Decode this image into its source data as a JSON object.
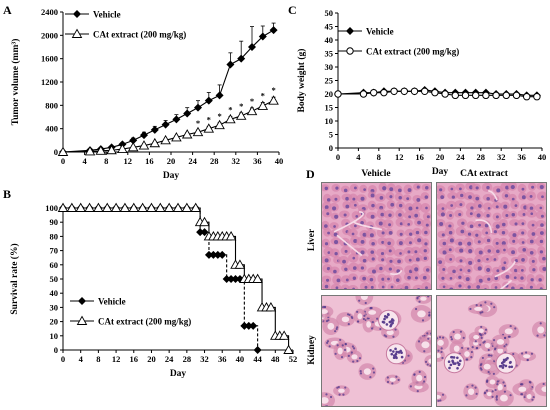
{
  "panels": {
    "A": "A",
    "B": "B",
    "C": "C",
    "D": "D"
  },
  "chart_data": [
    {
      "id": "A",
      "type": "line",
      "xlabel": "Day",
      "ylabel": "Tumor volume (mm³)",
      "xlim": [
        0,
        40
      ],
      "ylim": [
        0,
        2400
      ],
      "xticks": [
        0,
        4,
        8,
        12,
        16,
        20,
        24,
        28,
        32,
        36,
        40
      ],
      "yticks": [
        0,
        400,
        800,
        1200,
        1600,
        2000,
        2400
      ],
      "legend_position": "top-left",
      "series": [
        {
          "name": "Vehicle",
          "marker": "filled-diamond",
          "x": [
            0,
            5,
            7,
            9,
            11,
            13,
            15,
            17,
            19,
            21,
            23,
            25,
            27,
            29,
            31,
            33,
            35,
            37,
            39
          ],
          "y": [
            0,
            30,
            50,
            80,
            130,
            200,
            290,
            380,
            470,
            560,
            660,
            760,
            880,
            970,
            1500,
            1600,
            1800,
            1980,
            2090
          ],
          "err": [
            0,
            10,
            15,
            20,
            30,
            40,
            50,
            60,
            70,
            80,
            100,
            120,
            140,
            180,
            200,
            300,
            350,
            180,
            120
          ]
        },
        {
          "name": "CAt extract (200 mg/kg)",
          "marker": "open-triangle",
          "x": [
            0,
            5,
            7,
            9,
            11,
            13,
            15,
            17,
            19,
            21,
            23,
            25,
            27,
            29,
            31,
            33,
            35,
            37,
            39
          ],
          "y": [
            0,
            10,
            20,
            30,
            50,
            80,
            110,
            150,
            200,
            250,
            300,
            340,
            400,
            460,
            560,
            620,
            700,
            790,
            880
          ],
          "err": [
            0,
            5,
            5,
            10,
            10,
            15,
            20,
            20,
            25,
            30,
            30,
            35,
            40,
            40,
            45,
            50,
            55,
            60,
            60
          ]
        }
      ],
      "significance": {
        "symbol": "*",
        "x": [
          25,
          27,
          29,
          31,
          33,
          35,
          37,
          39
        ]
      }
    },
    {
      "id": "B",
      "type": "line",
      "step": true,
      "xlabel": "Day",
      "ylabel": "Survival rate (%)",
      "xlim": [
        0,
        52
      ],
      "ylim": [
        0,
        100
      ],
      "xticks": [
        0,
        4,
        8,
        12,
        16,
        20,
        24,
        28,
        32,
        36,
        40,
        44,
        48,
        52
      ],
      "yticks": [
        0,
        10,
        20,
        30,
        40,
        50,
        60,
        70,
        80,
        90,
        100
      ],
      "legend_position": "bottom-left",
      "series": [
        {
          "name": "Vehicle",
          "marker": "filled-diamond",
          "x": [
            0,
            2,
            4,
            6,
            8,
            10,
            12,
            14,
            16,
            18,
            20,
            22,
            24,
            26,
            28,
            30,
            31,
            32,
            33,
            34,
            35,
            36,
            37,
            38,
            39,
            40,
            41,
            42,
            43,
            44
          ],
          "y": [
            100,
            100,
            100,
            100,
            100,
            100,
            100,
            100,
            100,
            100,
            100,
            100,
            100,
            100,
            100,
            100,
            83,
            83,
            67,
            67,
            67,
            67,
            50,
            50,
            50,
            50,
            17,
            17,
            17,
            0
          ]
        },
        {
          "name": "CAt extract (200 mg/kg)",
          "marker": "open-triangle",
          "x": [
            0,
            2,
            4,
            6,
            8,
            10,
            12,
            14,
            16,
            18,
            20,
            22,
            24,
            26,
            28,
            30,
            31,
            32,
            33,
            34,
            35,
            36,
            37,
            38,
            39,
            40,
            41,
            42,
            43,
            44,
            45,
            46,
            47,
            48,
            49,
            50,
            51
          ],
          "y": [
            100,
            100,
            100,
            100,
            100,
            100,
            100,
            100,
            100,
            100,
            100,
            100,
            100,
            100,
            100,
            100,
            90,
            90,
            80,
            80,
            80,
            80,
            80,
            80,
            60,
            60,
            50,
            50,
            50,
            50,
            30,
            30,
            30,
            10,
            10,
            10,
            0
          ]
        }
      ]
    },
    {
      "id": "C",
      "type": "line",
      "xlabel": "Day",
      "ylabel": "Body weight (g)",
      "xlim": [
        0,
        40
      ],
      "ylim": [
        0,
        50
      ],
      "xticks": [
        0,
        4,
        8,
        12,
        16,
        20,
        24,
        28,
        32,
        36,
        40
      ],
      "yticks": [
        0,
        5,
        10,
        15,
        20,
        25,
        30,
        35,
        40,
        45,
        50
      ],
      "legend_position": "top-left",
      "series": [
        {
          "name": "Vehicle",
          "marker": "filled-diamond",
          "x": [
            0,
            5,
            7,
            9,
            11,
            13,
            15,
            17,
            19,
            21,
            23,
            25,
            27,
            29,
            31,
            33,
            35,
            37,
            39
          ],
          "y": [
            20,
            20.5,
            20.5,
            21,
            21,
            21,
            21,
            21.5,
            21,
            20.5,
            20.5,
            20.5,
            20.5,
            20.5,
            20,
            20,
            20,
            19.5,
            19.5
          ]
        },
        {
          "name": "CAt extract (200 mg/kg)",
          "marker": "open-circle",
          "x": [
            0,
            5,
            7,
            9,
            11,
            13,
            15,
            17,
            19,
            21,
            23,
            25,
            27,
            29,
            31,
            33,
            35,
            37,
            39
          ],
          "y": [
            20,
            20,
            20.5,
            20.5,
            21,
            21,
            21,
            21,
            20.5,
            20,
            19.5,
            19.5,
            19.5,
            19.5,
            19.5,
            19.5,
            19.5,
            19,
            19
          ]
        }
      ]
    }
  ],
  "histology": {
    "columns": [
      "Vehicle",
      "CAt extract"
    ],
    "rows": [
      "Liver",
      "Kidney"
    ]
  },
  "colors": {
    "ink": "#000000",
    "liver_bg": "#e7a9c6",
    "liver_cell": "#d684ad",
    "liver_nucleus": "#6b4a9e",
    "kidney_bg": "#efc1d5",
    "kidney_tubule": "#d489ae",
    "kidney_nucleus": "#5a3f8e"
  }
}
